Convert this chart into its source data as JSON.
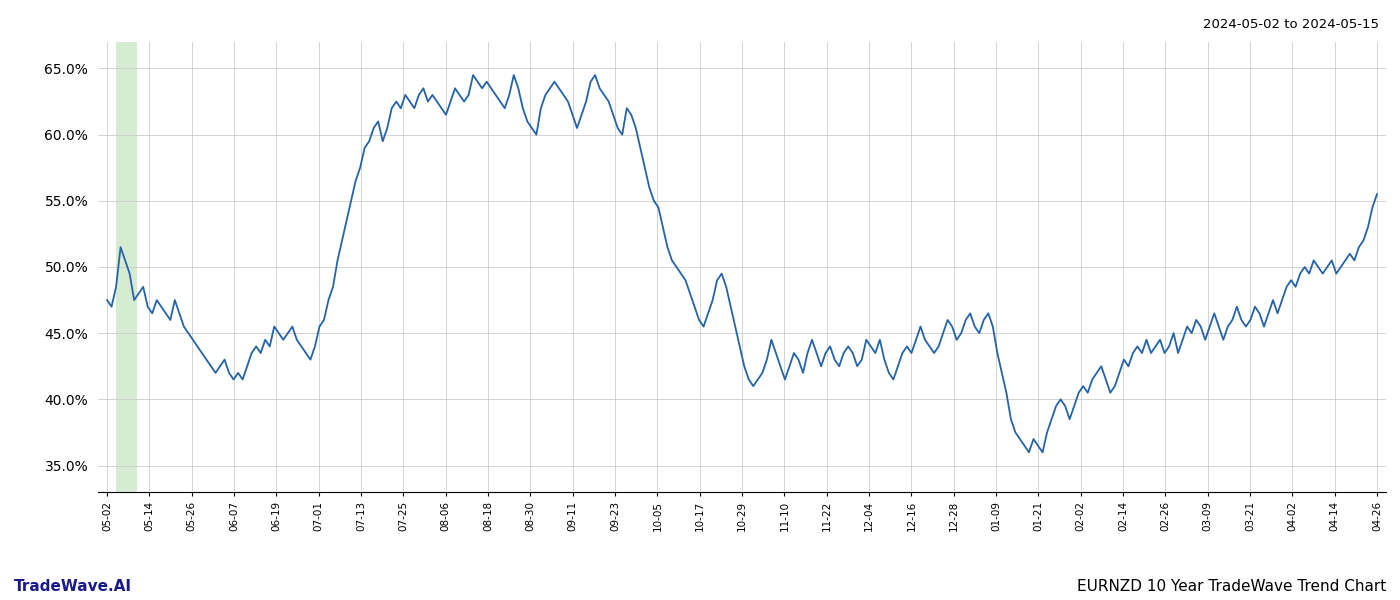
{
  "title_top_right": "2024-05-02 to 2024-05-15",
  "title_bottom_left": "TradeWave.AI",
  "title_bottom_right": "EURNZD 10 Year TradeWave Trend Chart",
  "y_min": 33.0,
  "y_max": 67.0,
  "y_ticks": [
    35.0,
    40.0,
    45.0,
    50.0,
    55.0,
    60.0,
    65.0
  ],
  "line_color": "#2563a8",
  "highlight_color": "#d6ecd2",
  "background_color": "#ffffff",
  "grid_color": "#cccccc",
  "x_labels": [
    "05-02",
    "05-14",
    "05-26",
    "06-07",
    "06-19",
    "07-01",
    "07-13",
    "07-25",
    "08-06",
    "08-18",
    "08-30",
    "09-11",
    "09-23",
    "10-05",
    "10-17",
    "10-29",
    "11-10",
    "11-22",
    "12-04",
    "12-16",
    "12-28",
    "01-09",
    "01-21",
    "02-02",
    "02-14",
    "02-26",
    "03-09",
    "03-21",
    "04-02",
    "04-14",
    "04-26"
  ],
  "values": [
    47.5,
    47.0,
    48.5,
    51.5,
    50.5,
    49.5,
    47.5,
    48.0,
    48.5,
    47.0,
    46.5,
    47.5,
    47.0,
    46.5,
    46.0,
    47.5,
    46.5,
    45.5,
    45.0,
    44.5,
    44.0,
    43.5,
    43.0,
    42.5,
    42.0,
    42.5,
    43.0,
    42.0,
    41.5,
    42.0,
    41.5,
    42.5,
    43.5,
    44.0,
    43.5,
    44.5,
    44.0,
    45.5,
    45.0,
    44.5,
    45.0,
    45.5,
    44.5,
    44.0,
    43.5,
    43.0,
    44.0,
    45.5,
    46.0,
    47.5,
    48.5,
    50.5,
    52.0,
    53.5,
    55.0,
    56.5,
    57.5,
    59.0,
    59.5,
    60.5,
    61.0,
    59.5,
    60.5,
    62.0,
    62.5,
    62.0,
    63.0,
    62.5,
    62.0,
    63.0,
    63.5,
    62.5,
    63.0,
    62.5,
    62.0,
    61.5,
    62.5,
    63.5,
    63.0,
    62.5,
    63.0,
    64.5,
    64.0,
    63.5,
    64.0,
    63.5,
    63.0,
    62.5,
    62.0,
    63.0,
    64.5,
    63.5,
    62.0,
    61.0,
    60.5,
    60.0,
    62.0,
    63.0,
    63.5,
    64.0,
    63.5,
    63.0,
    62.5,
    61.5,
    60.5,
    61.5,
    62.5,
    64.0,
    64.5,
    63.5,
    63.0,
    62.5,
    61.5,
    60.5,
    60.0,
    62.0,
    61.5,
    60.5,
    59.0,
    57.5,
    56.0,
    55.0,
    54.5,
    53.0,
    51.5,
    50.5,
    50.0,
    49.5,
    49.0,
    48.0,
    47.0,
    46.0,
    45.5,
    46.5,
    47.5,
    49.0,
    49.5,
    48.5,
    47.0,
    45.5,
    44.0,
    42.5,
    41.5,
    41.0,
    41.5,
    42.0,
    43.0,
    44.5,
    43.5,
    42.5,
    41.5,
    42.5,
    43.5,
    43.0,
    42.0,
    43.5,
    44.5,
    43.5,
    42.5,
    43.5,
    44.0,
    43.0,
    42.5,
    43.5,
    44.0,
    43.5,
    42.5,
    43.0,
    44.5,
    44.0,
    43.5,
    44.5,
    43.0,
    42.0,
    41.5,
    42.5,
    43.5,
    44.0,
    43.5,
    44.5,
    45.5,
    44.5,
    44.0,
    43.5,
    44.0,
    45.0,
    46.0,
    45.5,
    44.5,
    45.0,
    46.0,
    46.5,
    45.5,
    45.0,
    46.0,
    46.5,
    45.5,
    43.5,
    42.0,
    40.5,
    38.5,
    37.5,
    37.0,
    36.5,
    36.0,
    37.0,
    36.5,
    36.0,
    37.5,
    38.5,
    39.5,
    40.0,
    39.5,
    38.5,
    39.5,
    40.5,
    41.0,
    40.5,
    41.5,
    42.0,
    42.5,
    41.5,
    40.5,
    41.0,
    42.0,
    43.0,
    42.5,
    43.5,
    44.0,
    43.5,
    44.5,
    43.5,
    44.0,
    44.5,
    43.5,
    44.0,
    45.0,
    43.5,
    44.5,
    45.5,
    45.0,
    46.0,
    45.5,
    44.5,
    45.5,
    46.5,
    45.5,
    44.5,
    45.5,
    46.0,
    47.0,
    46.0,
    45.5,
    46.0,
    47.0,
    46.5,
    45.5,
    46.5,
    47.5,
    46.5,
    47.5,
    48.5,
    49.0,
    48.5,
    49.5,
    50.0,
    49.5,
    50.5,
    50.0,
    49.5,
    50.0,
    50.5,
    49.5,
    50.0,
    50.5,
    51.0,
    50.5,
    51.5,
    52.0,
    53.0,
    54.5,
    55.5
  ]
}
